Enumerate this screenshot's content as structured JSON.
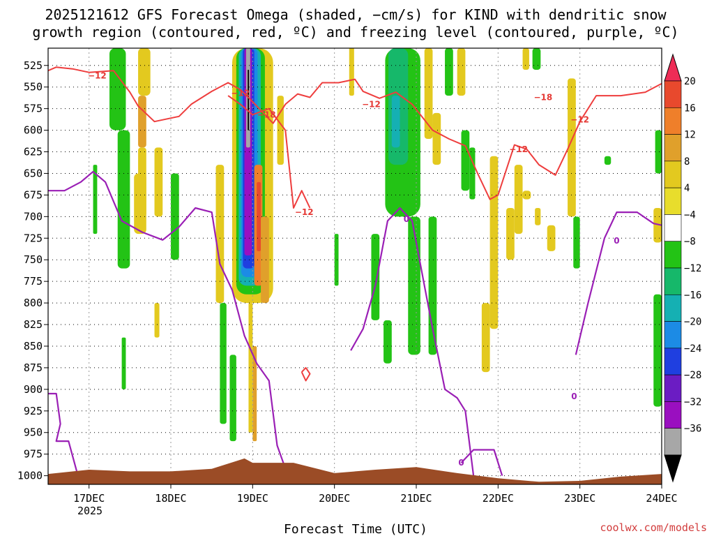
{
  "title_line1": "2025121612 GFS Forecast Omega (shaded, −cm/s) for KIND with dendritic snow",
  "title_line2": "growth region (contoured, red, ºC) and freezing level (contoured, purple, ºC)",
  "xlabel": "Forecast Time (UTC)",
  "credit": "coolwx.com/models",
  "chart_data": {
    "type": "heatmap",
    "x_ticks": [
      "17DEC",
      "18DEC",
      "19DEC",
      "20DEC",
      "21DEC",
      "22DEC",
      "23DEC",
      "24DEC"
    ],
    "x_year_label": "2025",
    "y_ticks": [
      525,
      550,
      575,
      600,
      625,
      650,
      675,
      700,
      725,
      750,
      775,
      800,
      825,
      850,
      875,
      900,
      925,
      950,
      975,
      1000
    ],
    "x_range_days": [
      16.5,
      24.0
    ],
    "y_range_hpa": [
      505,
      1010
    ],
    "y_reversed": true,
    "grid": true,
    "colorbar": {
      "labels": [
        "20",
        "16",
        "12",
        "8",
        "4",
        "−4",
        "−8",
        "−12",
        "−16",
        "−20",
        "−24",
        "−28",
        "−32",
        "−36"
      ],
      "levels": [
        20,
        16,
        12,
        8,
        4,
        -4,
        -8,
        -12,
        -16,
        -20,
        -24,
        -28,
        -32,
        -36
      ],
      "colors": [
        "#ee2c56",
        "#e8492d",
        "#ef7f2a",
        "#e0a02b",
        "#e3c91f",
        "#e8dd2c",
        "#ffffff",
        "#23c315",
        "#16b86a",
        "#15b0b3",
        "#1c8be5",
        "#1f3fe0",
        "#6b1cc3",
        "#9a0fc0",
        "#a7a7a7",
        "#000000"
      ]
    },
    "contour_labels": [
      {
        "text": "−12",
        "x": 17.1,
        "p": 537
      },
      {
        "text": "−12",
        "x": 18.85,
        "p": 557
      },
      {
        "text": "−18",
        "x": 19.17,
        "p": 582
      },
      {
        "text": "−12",
        "x": 19.63,
        "p": 695
      },
      {
        "text": "−12",
        "x": 20.45,
        "p": 570
      },
      {
        "text": "−12",
        "x": 22.25,
        "p": 622
      },
      {
        "text": "−18",
        "x": 22.55,
        "p": 562
      },
      {
        "text": "−12",
        "x": 23.0,
        "p": 588
      },
      {
        "text": "0",
        "x": 20.88,
        "p": 703
      },
      {
        "text": "0",
        "x": 23.45,
        "p": 728
      },
      {
        "text": "0",
        "x": 21.55,
        "p": 985
      },
      {
        "text": "0",
        "x": 22.93,
        "p": 908
      }
    ],
    "snow_growth_contour_-12": [
      [
        16.5,
        531
      ],
      [
        16.6,
        527
      ],
      [
        16.8,
        529
      ],
      [
        17.0,
        533
      ],
      [
        17.3,
        531
      ],
      [
        17.5,
        556
      ],
      [
        17.6,
        572
      ],
      [
        17.8,
        590
      ],
      [
        18.1,
        584
      ],
      [
        18.25,
        570
      ],
      [
        18.5,
        555
      ],
      [
        18.7,
        545
      ],
      [
        18.85,
        553
      ],
      [
        19.0,
        567
      ],
      [
        19.25,
        592
      ],
      [
        19.4,
        570
      ],
      [
        19.55,
        558
      ],
      [
        19.7,
        562
      ],
      [
        19.85,
        545
      ],
      [
        20.05,
        545
      ],
      [
        20.25,
        541
      ],
      [
        20.35,
        555
      ],
      [
        20.55,
        563
      ],
      [
        20.75,
        556
      ],
      [
        20.95,
        570
      ],
      [
        21.2,
        600
      ],
      [
        21.4,
        610
      ],
      [
        21.6,
        618
      ],
      [
        21.75,
        650
      ],
      [
        21.9,
        680
      ],
      [
        22.0,
        675
      ],
      [
        22.2,
        617
      ],
      [
        22.35,
        622
      ],
      [
        22.5,
        640
      ],
      [
        22.7,
        652
      ],
      [
        22.85,
        622
      ],
      [
        23.0,
        590
      ],
      [
        23.2,
        560
      ],
      [
        23.5,
        560
      ],
      [
        23.8,
        556
      ],
      [
        24.0,
        546
      ]
    ],
    "snow_growth_contour_-18": [
      [
        18.7,
        560
      ],
      [
        18.85,
        570
      ],
      [
        19.0,
        582
      ],
      [
        19.2,
        575
      ],
      [
        19.4,
        600
      ],
      [
        19.5,
        690
      ],
      [
        19.6,
        670
      ],
      [
        19.7,
        690
      ]
    ],
    "freezing_level_0": [
      [
        16.5,
        670
      ],
      [
        16.7,
        670
      ],
      [
        16.9,
        660
      ],
      [
        17.05,
        648
      ],
      [
        17.2,
        660
      ],
      [
        17.4,
        705
      ],
      [
        17.65,
        718
      ],
      [
        17.9,
        727
      ],
      [
        18.1,
        712
      ],
      [
        18.3,
        690
      ],
      [
        18.5,
        695
      ],
      [
        18.6,
        755
      ],
      [
        18.75,
        785
      ],
      [
        18.9,
        838
      ],
      [
        19.05,
        870
      ],
      [
        19.2,
        890
      ],
      [
        19.3,
        965
      ],
      [
        19.45,
        1005
      ]
    ],
    "freezing_level_0_b": [
      [
        20.2,
        855
      ],
      [
        20.35,
        830
      ],
      [
        20.5,
        780
      ],
      [
        20.65,
        705
      ],
      [
        20.8,
        690
      ],
      [
        20.95,
        705
      ],
      [
        21.1,
        780
      ],
      [
        21.2,
        830
      ],
      [
        21.35,
        900
      ],
      [
        21.5,
        910
      ],
      [
        21.6,
        925
      ],
      [
        21.7,
        1000
      ]
    ],
    "freezing_level_0_c": [
      [
        22.95,
        860
      ],
      [
        23.1,
        800
      ],
      [
        23.3,
        725
      ],
      [
        23.45,
        695
      ],
      [
        23.7,
        695
      ],
      [
        23.9,
        708
      ],
      [
        24.0,
        710
      ]
    ]
  }
}
